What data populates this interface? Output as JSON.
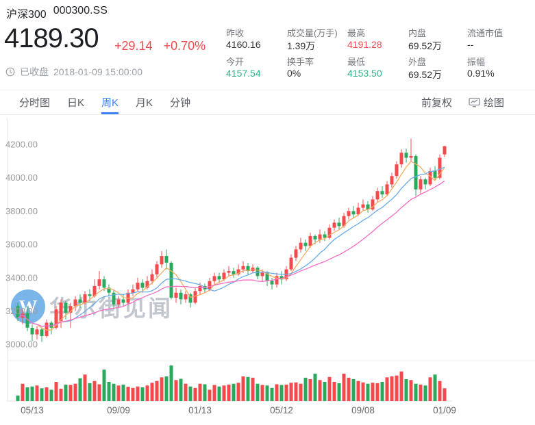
{
  "header": {
    "name": "沪深300",
    "code": "000300.SS",
    "price": "4189.30",
    "change": "+29.14",
    "change_pct": "+0.70%",
    "status": "已收盘",
    "datetime": "2018-01-09 15:00:00"
  },
  "stats": {
    "columns": [
      {
        "top": {
          "label": "昨收",
          "value": "4160.16",
          "color": "#333333"
        },
        "bottom": {
          "label": "今开",
          "value": "4157.54",
          "color": "#2fb287"
        }
      },
      {
        "top": {
          "label": "成交量(万手)",
          "value": "1.39万",
          "color": "#333333"
        },
        "bottom": {
          "label": "换手率",
          "value": "0%",
          "color": "#333333"
        }
      },
      {
        "top": {
          "label": "最高",
          "value": "4191.28",
          "color": "#f4494d"
        },
        "bottom": {
          "label": "最低",
          "value": "4153.50",
          "color": "#2fb287"
        }
      },
      {
        "top": {
          "label": "内盘",
          "value": "69.52万",
          "color": "#333333"
        },
        "bottom": {
          "label": "外盘",
          "value": "69.52万",
          "color": "#333333"
        }
      },
      {
        "top": {
          "label": "流通市值",
          "value": "--",
          "color": "#333333"
        },
        "bottom": {
          "label": "振幅",
          "value": "0.91%",
          "color": "#333333"
        }
      }
    ]
  },
  "tabs": {
    "items": [
      {
        "label": "分时图"
      },
      {
        "label": "日K"
      },
      {
        "label": "周K"
      },
      {
        "label": "月K"
      },
      {
        "label": "分钟"
      }
    ],
    "active_index": 2,
    "right": {
      "adjust_label": "前复权",
      "draw_label": "绘图"
    }
  },
  "watermark": {
    "logo_letter": "W",
    "text": "华尔街见闻"
  },
  "chart_data": {
    "type": "candlestick",
    "title": "沪深300 周K",
    "up_color": "#f4494d",
    "down_color": "#2aa95c",
    "ma_periods": [
      5,
      10,
      20
    ],
    "ma_colors": [
      "#f8ab60",
      "#68acea",
      "#f56cc4"
    ],
    "y_ticks": [
      4200,
      4000,
      3800,
      3600,
      3400,
      3200,
      3000
    ],
    "x_ticks": [
      {
        "index": 3,
        "label": "05/13"
      },
      {
        "index": 21,
        "label": "09/09"
      },
      {
        "index": 38,
        "label": "01/13"
      },
      {
        "index": 55,
        "label": "05/12"
      },
      {
        "index": 72,
        "label": "09/08"
      },
      {
        "index": 89,
        "label": "01/09"
      }
    ],
    "columns": [
      "open",
      "high",
      "low",
      "close",
      "volume_wan"
    ],
    "candles": [
      [
        3230,
        3250,
        3140,
        3160,
        0.3
      ],
      [
        3160,
        3210,
        3120,
        3190,
        0.95
      ],
      [
        3190,
        3230,
        3080,
        3100,
        0.75
      ],
      [
        3100,
        3120,
        3020,
        3060,
        0.8
      ],
      [
        3060,
        3110,
        3030,
        3090,
        0.85
      ],
      [
        3090,
        3100,
        3015,
        3050,
        0.7
      ],
      [
        3050,
        3150,
        3040,
        3130,
        0.75
      ],
      [
        3130,
        3140,
        3060,
        3100,
        0.62
      ],
      [
        3100,
        3230,
        3090,
        3210,
        1.05
      ],
      [
        3140,
        3270,
        3100,
        3250,
        0.68
      ],
      [
        3250,
        3260,
        3150,
        3190,
        0.9
      ],
      [
        3190,
        3250,
        3100,
        3230,
        0.88
      ],
      [
        3230,
        3290,
        3200,
        3270,
        0.95
      ],
      [
        3270,
        3300,
        3220,
        3250,
        1.25
      ],
      [
        3250,
        3320,
        3240,
        3300,
        1.45
      ],
      [
        3300,
        3330,
        3260,
        3290,
        0.98
      ],
      [
        3290,
        3390,
        3280,
        3350,
        1.1
      ],
      [
        3350,
        3440,
        3330,
        3390,
        0.92
      ],
      [
        3390,
        3410,
        3320,
        3340,
        1.72
      ],
      [
        3340,
        3360,
        3290,
        3310,
        1.05
      ],
      [
        3310,
        3330,
        3210,
        3240,
        0.95
      ],
      [
        3240,
        3290,
        3220,
        3270,
        0.85
      ],
      [
        3270,
        3300,
        3230,
        3250,
        0.9
      ],
      [
        3250,
        3330,
        3240,
        3310,
        0.78
      ],
      [
        3310,
        3360,
        3290,
        3330,
        0.72
      ],
      [
        3330,
        3400,
        3320,
        3370,
        0.8
      ],
      [
        3370,
        3390,
        3310,
        3340,
        0.75
      ],
      [
        3340,
        3410,
        3330,
        3380,
        0.85
      ],
      [
        3380,
        3450,
        3360,
        3420,
        1.0
      ],
      [
        3420,
        3500,
        3400,
        3480,
        1.1
      ],
      [
        3480,
        3560,
        3460,
        3530,
        1.3
      ],
      [
        3530,
        3570,
        3450,
        3490,
        1.35
      ],
      [
        3490,
        3500,
        3270,
        3280,
        1.95
      ],
      [
        3280,
        3340,
        3250,
        3310,
        1.15
      ],
      [
        3310,
        3330,
        3240,
        3270,
        1.22
      ],
      [
        3270,
        3320,
        3250,
        3300,
        0.95
      ],
      [
        3300,
        3310,
        3220,
        3250,
        0.8
      ],
      [
        3250,
        3340,
        3240,
        3320,
        0.72
      ],
      [
        3320,
        3370,
        3300,
        3350,
        0.95
      ],
      [
        3350,
        3365,
        3310,
        3330,
        0.92
      ],
      [
        3330,
        3400,
        3320,
        3380,
        0.62
      ],
      [
        3380,
        3430,
        3360,
        3410,
        0.88
      ],
      [
        3410,
        3430,
        3370,
        3390,
        0.8
      ],
      [
        3390,
        3450,
        3380,
        3430,
        0.85
      ],
      [
        3430,
        3470,
        3410,
        3440,
        0.9
      ],
      [
        3440,
        3460,
        3400,
        3420,
        0.95
      ],
      [
        3420,
        3480,
        3410,
        3450,
        1.0
      ],
      [
        3450,
        3500,
        3430,
        3470,
        1.35
      ],
      [
        3470,
        3490,
        3420,
        3440,
        1.32
      ],
      [
        3440,
        3480,
        3430,
        3460,
        1.28
      ],
      [
        3460,
        3470,
        3390,
        3410,
        0.95
      ],
      [
        3410,
        3450,
        3380,
        3430,
        0.88
      ],
      [
        3430,
        3440,
        3350,
        3380,
        0.85
      ],
      [
        3380,
        3400,
        3330,
        3360,
        0.72
      ],
      [
        3360,
        3430,
        3340,
        3410,
        0.92
      ],
      [
        3410,
        3440,
        3360,
        3390,
        0.88
      ],
      [
        3390,
        3470,
        3380,
        3450,
        0.9
      ],
      [
        3450,
        3540,
        3440,
        3520,
        1.0
      ],
      [
        3520,
        3590,
        3500,
        3570,
        1.02
      ],
      [
        3570,
        3640,
        3550,
        3610,
        0.95
      ],
      [
        3610,
        3630,
        3560,
        3590,
        1.28
      ],
      [
        3590,
        3670,
        3580,
        3650,
        1.2
      ],
      [
        3650,
        3660,
        3600,
        3630,
        1.5
      ],
      [
        3630,
        3690,
        3610,
        3660,
        1.15
      ],
      [
        3660,
        3680,
        3620,
        3640,
        1.05
      ],
      [
        3640,
        3720,
        3630,
        3700,
        1.32
      ],
      [
        3700,
        3750,
        3680,
        3730,
        1.05
      ],
      [
        3730,
        3760,
        3690,
        3710,
        0.98
      ],
      [
        3710,
        3790,
        3700,
        3770,
        1.5
      ],
      [
        3770,
        3820,
        3750,
        3800,
        1.28
      ],
      [
        3800,
        3830,
        3760,
        3780,
        1.2
      ],
      [
        3780,
        3850,
        3770,
        3820,
        1.1
      ],
      [
        3820,
        3870,
        3800,
        3840,
        1.02
      ],
      [
        3840,
        3860,
        3790,
        3810,
        0.95
      ],
      [
        3810,
        3890,
        3800,
        3870,
        1.0
      ],
      [
        3870,
        3940,
        3850,
        3920,
        0.98
      ],
      [
        3920,
        3950,
        3880,
        3900,
        1.05
      ],
      [
        3900,
        3980,
        3890,
        3960,
        1.3
      ],
      [
        3960,
        4030,
        3940,
        4010,
        1.35
      ],
      [
        4010,
        4100,
        3995,
        4080,
        1.4
      ],
      [
        4080,
        4170,
        4060,
        4150,
        1.62
      ],
      [
        4150,
        4175,
        4090,
        4120,
        1.2
      ],
      [
        4120,
        4235,
        4100,
        4130,
        1.15
      ],
      [
        4130,
        4140,
        3890,
        3930,
        0.95
      ],
      [
        3930,
        4010,
        3900,
        3990,
        0.9
      ],
      [
        3990,
        4000,
        3930,
        3960,
        0.85
      ],
      [
        3960,
        4060,
        3950,
        4040,
        1.3
      ],
      [
        4040,
        4070,
        3980,
        4000,
        1.45
      ],
      [
        4000,
        4140,
        3990,
        4120,
        1.1
      ],
      [
        4140,
        4191.28,
        4125,
        4189.3,
        0.7
      ]
    ]
  }
}
